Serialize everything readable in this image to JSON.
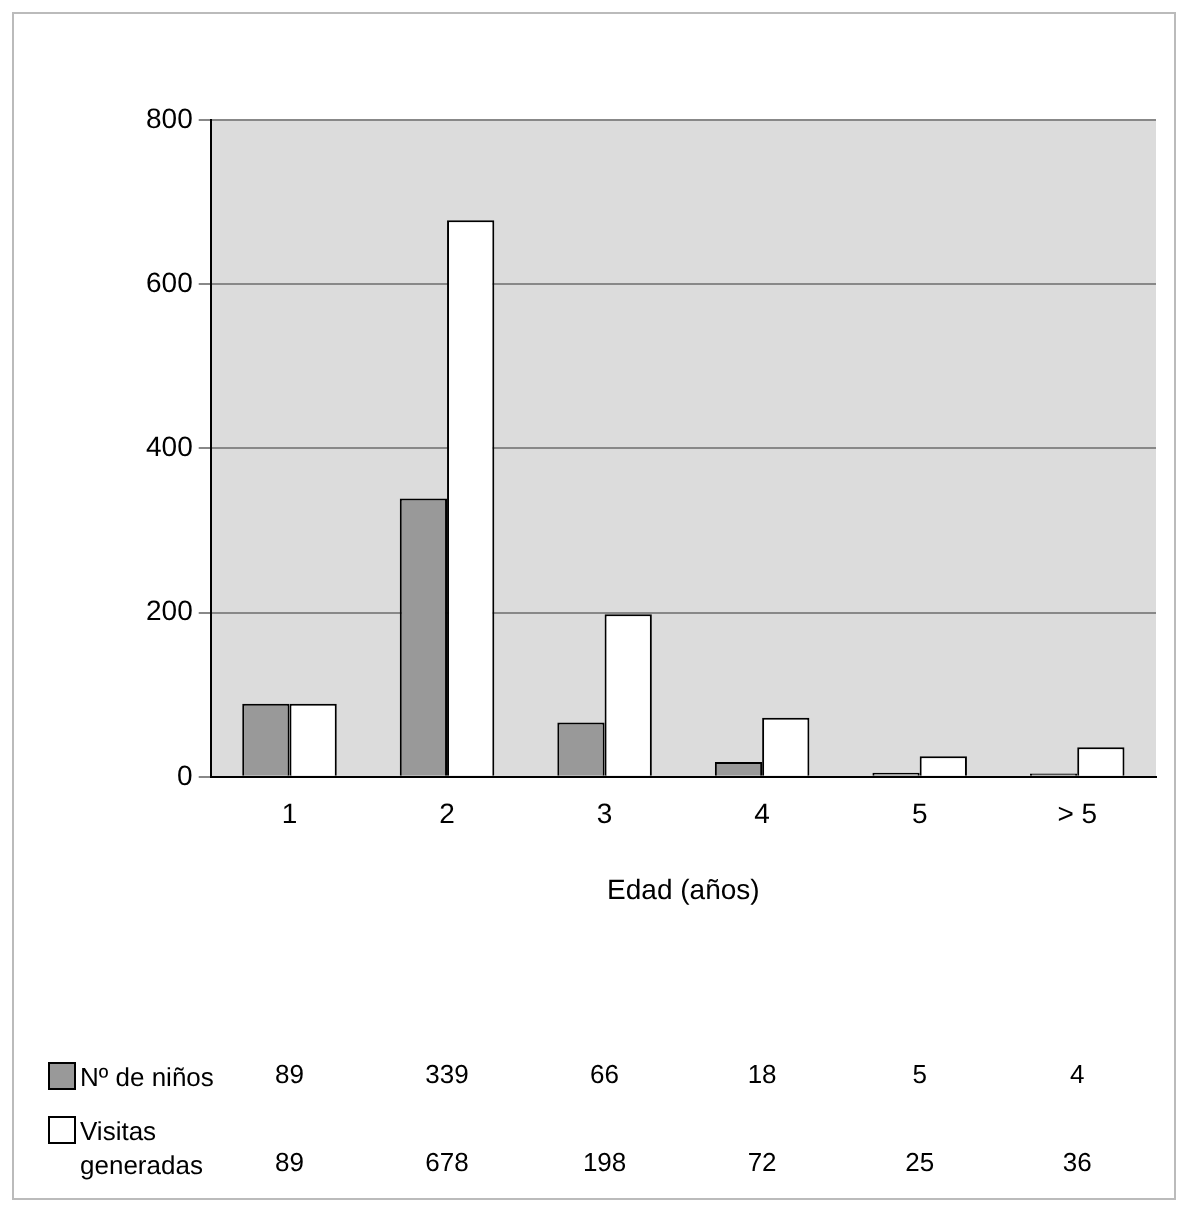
{
  "chart_data": {
    "type": "bar",
    "xlabel": "Edad (años)",
    "categories": [
      "1",
      "2",
      "3",
      "4",
      "5",
      "> 5"
    ],
    "series": [
      {
        "name": "Nº de niños",
        "color": "#999999",
        "values": [
          89,
          339,
          66,
          18,
          5,
          4
        ]
      },
      {
        "name": "Visitas generadas",
        "color": "#ffffff",
        "values": [
          89,
          678,
          198,
          72,
          25,
          36
        ]
      }
    ],
    "ylim": [
      0,
      800
    ],
    "yticks": [
      0,
      200,
      400,
      600,
      800
    ],
    "grid": "y",
    "legend": "bottom",
    "data_labels": true
  }
}
